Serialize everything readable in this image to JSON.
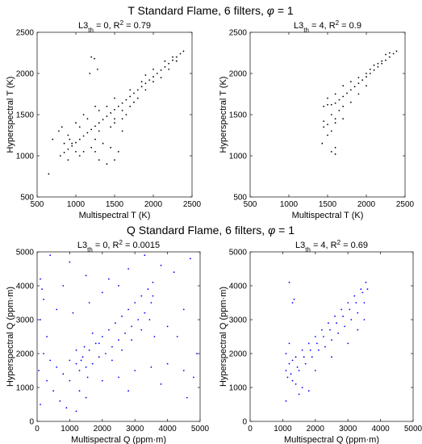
{
  "section_titles": {
    "top": {
      "prefix": "T Standard Flame, 6 filters, ",
      "phi": "φ",
      "suffix": " = 1"
    },
    "bottom": {
      "prefix": "Q Standard Flame, 6 filters, ",
      "phi": "φ",
      "suffix": " = 1"
    }
  },
  "chart_data": [
    {
      "type": "scatter",
      "title": {
        "base": "L3",
        "sub": "th",
        "mid": " = 0, R",
        "sup": "2",
        "end": " = 0.79"
      },
      "xlabel": "Multispectral T (K)",
      "ylabel": "Hyperspectral T (K)",
      "xlim": [
        500,
        2500
      ],
      "ylim": [
        500,
        2500
      ],
      "xticks": [
        500,
        1000,
        1500,
        2000,
        2500
      ],
      "yticks": [
        500,
        1000,
        1500,
        2000,
        2500
      ],
      "color": "#000000",
      "points": [
        [
          2390,
          2270
        ],
        [
          2350,
          2240
        ],
        [
          2300,
          2200
        ],
        [
          2250,
          2160
        ],
        [
          2200,
          2120
        ],
        [
          2150,
          2080
        ],
        [
          2100,
          2040
        ],
        [
          2050,
          2000
        ],
        [
          2000,
          1960
        ],
        [
          1950,
          1920
        ],
        [
          1900,
          1880
        ],
        [
          1850,
          1840
        ],
        [
          1800,
          1800
        ],
        [
          1750,
          1760
        ],
        [
          1700,
          1720
        ],
        [
          1650,
          1680
        ],
        [
          1600,
          1640
        ],
        [
          1550,
          1600
        ],
        [
          1500,
          1560
        ],
        [
          1450,
          1520
        ],
        [
          1400,
          1480
        ],
        [
          1350,
          1440
        ],
        [
          1300,
          1400
        ],
        [
          1250,
          1360
        ],
        [
          1200,
          1320
        ],
        [
          1150,
          1280
        ],
        [
          1100,
          1240
        ],
        [
          1050,
          1200
        ],
        [
          1000,
          1160
        ],
        [
          950,
          1120
        ],
        [
          900,
          1080
        ],
        [
          850,
          1040
        ],
        [
          800,
          1000
        ],
        [
          780,
          1300
        ],
        [
          820,
          1350
        ],
        [
          900,
          1250
        ],
        [
          1000,
          1400
        ],
        [
          1050,
          1350
        ],
        [
          1100,
          1050
        ],
        [
          1200,
          1100
        ],
        [
          1300,
          950
        ],
        [
          1400,
          900
        ],
        [
          1500,
          950
        ],
        [
          1550,
          1050
        ],
        [
          1600,
          1300
        ],
        [
          1500,
          1450
        ],
        [
          1600,
          1550
        ],
        [
          1450,
          1100
        ],
        [
          1350,
          1150
        ],
        [
          900,
          950
        ],
        [
          950,
          1150
        ],
        [
          1250,
          1050
        ],
        [
          1100,
          1500
        ],
        [
          1150,
          1450
        ],
        [
          1250,
          1600
        ],
        [
          1300,
          1550
        ],
        [
          1400,
          1600
        ],
        [
          1500,
          1700
        ],
        [
          1200,
          2200
        ],
        [
          1240,
          2180
        ],
        [
          1280,
          2050
        ],
        [
          1180,
          2000
        ],
        [
          1250,
          1200
        ],
        [
          1300,
          1300
        ],
        [
          1050,
          1000
        ],
        [
          1000,
          1050
        ],
        [
          920,
          1200
        ],
        [
          850,
          1150
        ],
        [
          1450,
          1350
        ],
        [
          1500,
          1400
        ],
        [
          1600,
          1450
        ],
        [
          1650,
          1500
        ],
        [
          700,
          1200
        ],
        [
          650,
          780
        ],
        [
          1700,
          1600
        ],
        [
          1750,
          1650
        ],
        [
          1800,
          1700
        ],
        [
          1900,
          1800
        ],
        [
          2000,
          1900
        ],
        [
          2100,
          1950
        ],
        [
          2200,
          2050
        ],
        [
          2300,
          2150
        ],
        [
          2000,
          2050
        ],
        [
          1900,
          1980
        ],
        [
          1850,
          1900
        ],
        [
          1700,
          1800
        ],
        [
          2150,
          2150
        ],
        [
          2250,
          2200
        ]
      ]
    },
    {
      "type": "scatter",
      "title": {
        "base": "L3",
        "sub": "th",
        "mid": " = 4, R",
        "sup": "2",
        "end": " = 0.9"
      },
      "xlabel": "Multispectral T (K)",
      "ylabel": "Hyperspectral T (K)",
      "xlim": [
        500,
        2500
      ],
      "ylim": [
        500,
        2500
      ],
      "xticks": [
        500,
        1000,
        1500,
        2000,
        2500
      ],
      "yticks": [
        500,
        1000,
        1500,
        2000,
        2500
      ],
      "color": "#000000",
      "points": [
        [
          2390,
          2270
        ],
        [
          2350,
          2240
        ],
        [
          2300,
          2200
        ],
        [
          2250,
          2160
        ],
        [
          2200,
          2120
        ],
        [
          2150,
          2080
        ],
        [
          2100,
          2040
        ],
        [
          2050,
          2000
        ],
        [
          2000,
          1960
        ],
        [
          1950,
          1920
        ],
        [
          1900,
          1880
        ],
        [
          1850,
          1840
        ],
        [
          1800,
          1800
        ],
        [
          1750,
          1760
        ],
        [
          1700,
          1720
        ],
        [
          1650,
          1680
        ],
        [
          1600,
          1640
        ],
        [
          1550,
          1620
        ],
        [
          1500,
          1620
        ],
        [
          1450,
          1600
        ],
        [
          1500,
          1700
        ],
        [
          1600,
          1750
        ],
        [
          1700,
          1850
        ],
        [
          1800,
          1900
        ],
        [
          1900,
          1950
        ],
        [
          2000,
          2000
        ],
        [
          2100,
          2100
        ],
        [
          2200,
          2150
        ],
        [
          1550,
          1500
        ],
        [
          1600,
          1450
        ],
        [
          1650,
          1550
        ],
        [
          1700,
          1600
        ],
        [
          1800,
          1650
        ],
        [
          1900,
          1750
        ],
        [
          2000,
          1850
        ],
        [
          1450,
          1350
        ],
        [
          1500,
          1250
        ],
        [
          1550,
          1300
        ],
        [
          1600,
          1100
        ],
        [
          1550,
          1050
        ],
        [
          1600,
          1020
        ],
        [
          1430,
          1150
        ],
        [
          1450,
          1420
        ],
        [
          1500,
          1380
        ],
        [
          1600,
          1400
        ],
        [
          1700,
          1450
        ],
        [
          2300,
          2250
        ],
        [
          2250,
          2230
        ],
        [
          2150,
          2120
        ],
        [
          2050,
          2050
        ]
      ]
    },
    {
      "type": "scatter",
      "title": {
        "base": "L3",
        "sub": "th",
        "mid": " = 0, R",
        "sup": "2",
        "end": " = 0.0015"
      },
      "xlabel": "Multispectral Q (ppm·m)",
      "ylabel": "Hyperspectral Q (ppm·m)",
      "xlim": [
        0,
        5000
      ],
      "ylim": [
        0,
        5000
      ],
      "xticks": [
        0,
        1000,
        2000,
        3000,
        4000,
        5000
      ],
      "yticks": [
        0,
        1000,
        2000,
        3000,
        4000,
        5000
      ],
      "color": "#0000ff",
      "points": [
        [
          3550,
          4100
        ],
        [
          3400,
          3900
        ],
        [
          3200,
          3700
        ],
        [
          3000,
          3500
        ],
        [
          2800,
          3300
        ],
        [
          2600,
          3100
        ],
        [
          2400,
          2900
        ],
        [
          2200,
          2700
        ],
        [
          2000,
          2500
        ],
        [
          1800,
          2300
        ],
        [
          1600,
          2100
        ],
        [
          1400,
          1900
        ],
        [
          1200,
          1700
        ],
        [
          1300,
          1500
        ],
        [
          1500,
          1600
        ],
        [
          1700,
          1700
        ],
        [
          1900,
          1900
        ],
        [
          2100,
          2000
        ],
        [
          2300,
          2200
        ],
        [
          2500,
          2400
        ],
        [
          2700,
          2600
        ],
        [
          2900,
          2800
        ],
        [
          3100,
          3000
        ],
        [
          3300,
          3200
        ],
        [
          3500,
          3500
        ],
        [
          100,
          4200
        ],
        [
          150,
          3900
        ],
        [
          200,
          3600
        ],
        [
          100,
          3000
        ],
        [
          300,
          2500
        ],
        [
          200,
          2000
        ],
        [
          400,
          1800
        ],
        [
          600,
          1600
        ],
        [
          800,
          1400
        ],
        [
          1000,
          1200
        ],
        [
          300,
          1200
        ],
        [
          500,
          900
        ],
        [
          700,
          600
        ],
        [
          900,
          400
        ],
        [
          1200,
          300
        ],
        [
          1500,
          700
        ],
        [
          2000,
          1200
        ],
        [
          2500,
          1300
        ],
        [
          3000,
          1500
        ],
        [
          3500,
          1600
        ],
        [
          4000,
          1700
        ],
        [
          4500,
          1500
        ],
        [
          4800,
          1300
        ],
        [
          4900,
          2000
        ],
        [
          4700,
          4800
        ],
        [
          4200,
          4400
        ],
        [
          3800,
          4600
        ],
        [
          3300,
          4900
        ],
        [
          2800,
          4500
        ],
        [
          2500,
          4000
        ],
        [
          2000,
          3800
        ],
        [
          1500,
          4300
        ],
        [
          1000,
          4700
        ],
        [
          800,
          4000
        ],
        [
          600,
          3300
        ],
        [
          1100,
          3200
        ],
        [
          1600,
          3500
        ],
        [
          4000,
          2800
        ],
        [
          4500,
          3300
        ],
        [
          4300,
          2500
        ],
        [
          3800,
          1100
        ],
        [
          4600,
          700
        ],
        [
          400,
          4900
        ],
        [
          100,
          500
        ],
        [
          50,
          1500
        ],
        [
          2200,
          4200
        ],
        [
          3600,
          2500
        ],
        [
          2800,
          900
        ],
        [
          1300,
          900
        ],
        [
          1000,
          1800
        ],
        [
          1200,
          2100
        ],
        [
          1350,
          1800
        ],
        [
          1450,
          2200
        ],
        [
          1550,
          1300
        ],
        [
          1700,
          2600
        ],
        [
          1900,
          2300
        ],
        [
          2300,
          1800
        ],
        [
          2600,
          2100
        ],
        [
          2900,
          2400
        ],
        [
          3200,
          2700
        ],
        [
          3450,
          3000
        ],
        [
          3550,
          3700
        ]
      ]
    },
    {
      "type": "scatter",
      "title": {
        "base": "L3",
        "sub": "th",
        "mid": " = 4, R",
        "sup": "2",
        "end": " = 0.69"
      },
      "xlabel": "Multispectral Q (ppm·m)",
      "ylabel": "Hyperspectral Q (ppm·m)",
      "xlim": [
        0,
        5000
      ],
      "ylim": [
        0,
        5000
      ],
      "xticks": [
        0,
        1000,
        2000,
        3000,
        4000,
        5000
      ],
      "yticks": [
        0,
        1000,
        2000,
        3000,
        4000,
        5000
      ],
      "color": "#0000ff",
      "points": [
        [
          3550,
          4100
        ],
        [
          3400,
          3900
        ],
        [
          3200,
          3700
        ],
        [
          3000,
          3500
        ],
        [
          2800,
          3300
        ],
        [
          2600,
          3100
        ],
        [
          2400,
          2900
        ],
        [
          2200,
          2700
        ],
        [
          2000,
          2500
        ],
        [
          1800,
          2300
        ],
        [
          1600,
          2100
        ],
        [
          1400,
          1900
        ],
        [
          1200,
          1700
        ],
        [
          1100,
          1500
        ],
        [
          1150,
          1300
        ],
        [
          1300,
          1200
        ],
        [
          1500,
          1500
        ],
        [
          1700,
          1700
        ],
        [
          1900,
          1900
        ],
        [
          2100,
          2100
        ],
        [
          2300,
          2200
        ],
        [
          2500,
          2400
        ],
        [
          2700,
          2600
        ],
        [
          2900,
          2800
        ],
        [
          3100,
          3000
        ],
        [
          3300,
          3200
        ],
        [
          3500,
          3500
        ],
        [
          1100,
          2000
        ],
        [
          1200,
          2300
        ],
        [
          1300,
          1800
        ],
        [
          1400,
          1100
        ],
        [
          1600,
          1000
        ],
        [
          1800,
          900
        ],
        [
          1500,
          800
        ],
        [
          1100,
          600
        ],
        [
          1200,
          4100
        ],
        [
          1300,
          3500
        ],
        [
          1350,
          3600
        ],
        [
          2000,
          1500
        ],
        [
          2500,
          1900
        ],
        [
          3000,
          2300
        ],
        [
          3300,
          2700
        ],
        [
          3500,
          3000
        ],
        [
          1250,
          1400
        ],
        [
          1450,
          1600
        ],
        [
          1650,
          1900
        ],
        [
          1850,
          2100
        ],
        [
          2050,
          2300
        ],
        [
          2250,
          2500
        ],
        [
          2450,
          2700
        ],
        [
          2650,
          2900
        ],
        [
          2850,
          3100
        ],
        [
          3050,
          3300
        ],
        [
          3250,
          3500
        ],
        [
          3450,
          3800
        ],
        [
          3600,
          3900
        ]
      ]
    }
  ]
}
